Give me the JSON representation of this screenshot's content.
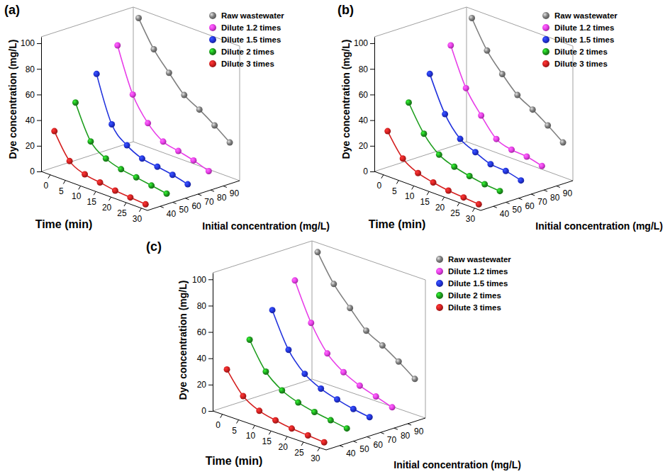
{
  "chart_data": [
    {
      "type": "line",
      "title": "(a)",
      "xlabel": "Time (min)",
      "ylabel": "Dye concentration (mg/L)",
      "zlabel": "Initial concentration (mg/L)",
      "x": [
        0,
        5,
        10,
        15,
        20,
        25,
        30
      ],
      "xlim": [
        -3,
        32
      ],
      "xticks": [
        0,
        5,
        10,
        15,
        20,
        25,
        30
      ],
      "ylim": [
        0,
        105
      ],
      "yticks": [
        0,
        20,
        40,
        60,
        80,
        100
      ],
      "zlim": [
        30,
        103
      ],
      "zticks": [
        40,
        50,
        60,
        70,
        80,
        90
      ],
      "grid": false,
      "legend": "right",
      "series": [
        {
          "name": "Raw wastewater",
          "color": "#808080",
          "marker": "circle",
          "line_style": "solid",
          "initial_concentration": 100,
          "values": [
            100,
            80,
            66,
            53,
            46,
            38,
            29
          ]
        },
        {
          "name": "Dilute 1.2 times",
          "color": "#e83ee8",
          "marker": "circle",
          "line_style": "solid",
          "initial_concentration": 83.3,
          "values": [
            84,
            50,
            32,
            22,
            19,
            16,
            12
          ]
        },
        {
          "name": "Dilute 1.5 times",
          "color": "#2233dd",
          "marker": "circle",
          "line_style": "solid",
          "initial_concentration": 66.7,
          "values": [
            67,
            32,
            20,
            14,
            12,
            10,
            7
          ]
        },
        {
          "name": "Dilute 2 times",
          "color": "#1e9e1e",
          "marker": "circle",
          "line_style": "solid",
          "initial_concentration": 50,
          "values": [
            50,
            24,
            15,
            11,
            9,
            7,
            5
          ]
        },
        {
          "name": "Dilute 3 times",
          "color": "#d42020",
          "marker": "circle",
          "line_style": "solid",
          "initial_concentration": 33.3,
          "values": [
            33,
            14,
            8,
            6,
            4,
            3,
            2
          ]
        }
      ]
    },
    {
      "type": "line",
      "title": "(b)",
      "xlabel": "Time (min)",
      "ylabel": "Dye concentration (mg/L)",
      "zlabel": "Initial concentration (mg/L)",
      "x": [
        0,
        5,
        10,
        15,
        20,
        25,
        30
      ],
      "xlim": [
        -3,
        32
      ],
      "xticks": [
        0,
        5,
        10,
        15,
        20,
        25,
        30
      ],
      "ylim": [
        0,
        105
      ],
      "yticks": [
        0,
        20,
        40,
        60,
        80,
        100
      ],
      "zlim": [
        30,
        103
      ],
      "zticks": [
        40,
        50,
        60,
        70,
        80,
        90
      ],
      "grid": false,
      "legend": "right",
      "series": [
        {
          "name": "Raw wastewater",
          "color": "#808080",
          "marker": "circle",
          "line_style": "solid",
          "initial_concentration": 100,
          "values": [
            100,
            79,
            65,
            53,
            46,
            38,
            29
          ]
        },
        {
          "name": "Dilute 1.2 times",
          "color": "#e83ee8",
          "marker": "circle",
          "line_style": "solid",
          "initial_concentration": 83.3,
          "values": [
            84,
            55,
            38,
            24,
            20,
            19,
            16
          ]
        },
        {
          "name": "Dilute 1.5 times",
          "color": "#2233dd",
          "marker": "circle",
          "line_style": "solid",
          "initial_concentration": 66.7,
          "values": [
            67,
            40,
            25,
            19,
            14,
            13,
            10
          ]
        },
        {
          "name": "Dilute 2 times",
          "color": "#1e9e1e",
          "marker": "circle",
          "line_style": "solid",
          "initial_concentration": 50,
          "values": [
            50,
            30,
            18,
            13,
            10,
            8,
            7
          ]
        },
        {
          "name": "Dilute 3 times",
          "color": "#d42020",
          "marker": "circle",
          "line_style": "solid",
          "initial_concentration": 33.3,
          "values": [
            33,
            16,
            9,
            6,
            4,
            3,
            2
          ]
        }
      ]
    },
    {
      "type": "line",
      "title": "(c)",
      "xlabel": "Time (min)",
      "ylabel": "Dye concentration (mg/L)",
      "zlabel": "Initial concentration (mg/L)",
      "x": [
        0,
        5,
        10,
        15,
        20,
        25,
        30
      ],
      "xlim": [
        -3,
        32
      ],
      "xticks": [
        0,
        5,
        10,
        15,
        20,
        25,
        30
      ],
      "ylim": [
        0,
        105
      ],
      "yticks": [
        0,
        20,
        40,
        60,
        80,
        100
      ],
      "zlim": [
        30,
        103
      ],
      "zticks": [
        40,
        50,
        60,
        70,
        80,
        90
      ],
      "grid": false,
      "legend": "right",
      "series": [
        {
          "name": "Raw wastewater",
          "color": "#808080",
          "marker": "circle",
          "line_style": "solid",
          "initial_concentration": 100,
          "values": [
            100,
            80,
            66,
            53,
            46,
            38,
            29
          ]
        },
        {
          "name": "Dilute 1.2 times",
          "color": "#e83ee8",
          "marker": "circle",
          "line_style": "solid",
          "initial_concentration": 83.3,
          "values": [
            84,
            56,
            37,
            27,
            21,
            17,
            13
          ]
        },
        {
          "name": "Dilute 1.5 times",
          "color": "#2233dd",
          "marker": "circle",
          "line_style": "solid",
          "initial_concentration": 66.7,
          "values": [
            67,
            41,
            27,
            20,
            16,
            13,
            11
          ]
        },
        {
          "name": "Dilute 2 times",
          "color": "#1e9e1e",
          "marker": "circle",
          "line_style": "solid",
          "initial_concentration": 50,
          "values": [
            50,
            30,
            20,
            15,
            12,
            10,
            8
          ]
        },
        {
          "name": "Dilute 3 times",
          "color": "#d42020",
          "marker": "circle",
          "line_style": "solid",
          "initial_concentration": 33.3,
          "values": [
            33,
            17,
            10,
            7,
            5,
            4,
            3
          ]
        }
      ]
    }
  ]
}
